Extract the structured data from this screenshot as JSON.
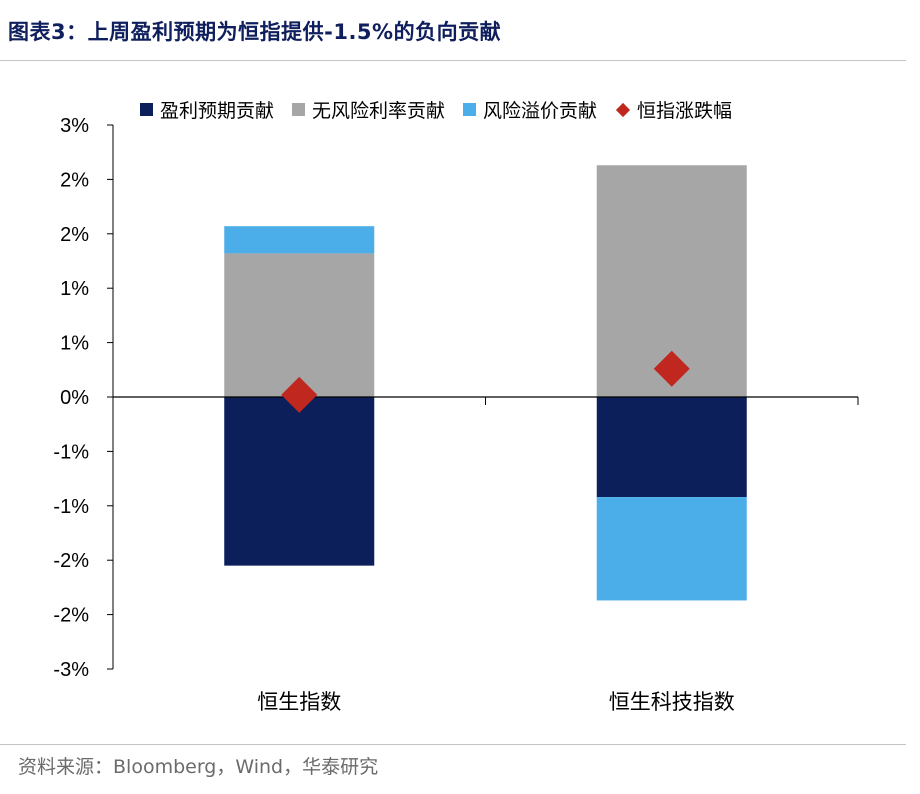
{
  "title": "图表3：上周盈利预期为恒指提供-1.5%的负向贡献",
  "source": "资料来源：Bloomberg，Wind，华泰研究",
  "chart_data": {
    "type": "bar",
    "stacked": true,
    "categories": [
      "恒生指数",
      "恒生科技指数"
    ],
    "series": [
      {
        "name": "盈利预期贡献",
        "kind": "bar",
        "color": "#0c1f5a",
        "values": [
          -1.55,
          -0.92
        ]
      },
      {
        "name": "无风险利率贡献",
        "kind": "bar",
        "color": "#a6a6a6",
        "values": [
          1.32,
          2.13
        ]
      },
      {
        "name": "风险溢价贡献",
        "kind": "bar",
        "color": "#4baee8",
        "values": [
          0.25,
          -0.95
        ]
      },
      {
        "name": "恒指涨跌幅",
        "kind": "marker",
        "marker": "diamond",
        "color": "#c0271e",
        "values": [
          0.02,
          0.26
        ]
      }
    ],
    "ylim": [
      -2.5,
      2.5
    ],
    "y_ticks": [
      -2.5,
      -2.0,
      -1.5,
      -1.0,
      -0.5,
      0,
      0.5,
      1.0,
      1.5,
      2.0,
      2.5
    ],
    "y_tick_labels": [
      "-3%",
      "-2%",
      "-2%",
      "-1%",
      "-1%",
      "0%",
      "1%",
      "1%",
      "2%",
      "2%",
      "3%"
    ],
    "grid": false,
    "legend_position": "top"
  }
}
